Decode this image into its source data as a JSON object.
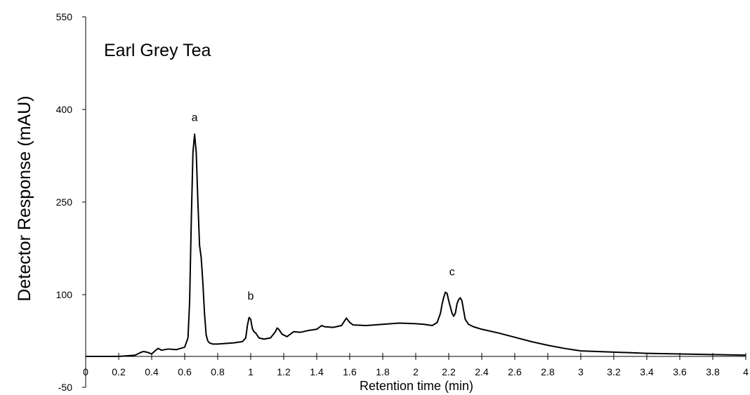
{
  "chart_data": {
    "type": "line",
    "title": "Earl Grey Tea",
    "xlabel": "Retention time (min)",
    "ylabel": "Detector Response (mAU)",
    "xlim": [
      0,
      4
    ],
    "ylim": [
      -50,
      550
    ],
    "x_ticks": [
      "0",
      "0.2",
      "0.4",
      "0.6",
      "0.8",
      "1",
      "1.2",
      "1.4",
      "1.6",
      "1.8",
      "2",
      "2.2",
      "2.4",
      "2.6",
      "2.8",
      "3",
      "3.2",
      "3.4",
      "3.6",
      "3.8",
      "4"
    ],
    "y_ticks": [
      "550",
      "400",
      "250",
      "100",
      "-50"
    ],
    "grid": false,
    "series_color": "#000000",
    "annotations": [
      {
        "text": "a",
        "x": 0.66,
        "y": 381
      },
      {
        "text": "b",
        "x": 1.0,
        "y": 92
      },
      {
        "text": "c",
        "x": 2.22,
        "y": 131
      }
    ],
    "series": [
      {
        "x": [
          0,
          0.1,
          0.2,
          0.3,
          0.33,
          0.35,
          0.37,
          0.4,
          0.42,
          0.44,
          0.46,
          0.5,
          0.55,
          0.6,
          0.62,
          0.63,
          0.64,
          0.65,
          0.66,
          0.67,
          0.68,
          0.69,
          0.7,
          0.71,
          0.72,
          0.73,
          0.74,
          0.75,
          0.77,
          0.8,
          0.85,
          0.9,
          0.95,
          0.97,
          0.98,
          0.99,
          1.0,
          1.01,
          1.02,
          1.03,
          1.05,
          1.08,
          1.12,
          1.15,
          1.16,
          1.17,
          1.19,
          1.22,
          1.25,
          1.26,
          1.3,
          1.35,
          1.4,
          1.43,
          1.45,
          1.5,
          1.55,
          1.57,
          1.58,
          1.6,
          1.62,
          1.7,
          1.8,
          1.9,
          2.0,
          2.05,
          2.1,
          2.13,
          2.15,
          2.16,
          2.17,
          2.18,
          2.19,
          2.2,
          2.22,
          2.23,
          2.24,
          2.25,
          2.26,
          2.27,
          2.28,
          2.29,
          2.3,
          2.32,
          2.35,
          2.4,
          2.5,
          2.6,
          2.7,
          2.8,
          2.9,
          3.0,
          3.2,
          3.4,
          3.6,
          3.8,
          4.0
        ],
        "y": [
          0,
          0,
          0,
          2,
          6,
          8,
          7,
          4,
          9,
          13,
          10,
          12,
          11,
          15,
          30,
          90,
          220,
          330,
          360,
          330,
          250,
          180,
          160,
          120,
          70,
          35,
          25,
          22,
          20,
          20,
          21,
          22,
          24,
          30,
          50,
          63,
          60,
          45,
          40,
          38,
          30,
          28,
          30,
          40,
          46,
          44,
          36,
          32,
          38,
          40,
          39,
          42,
          44,
          50,
          48,
          47,
          50,
          58,
          62,
          55,
          51,
          50,
          52,
          54,
          53,
          52,
          50,
          55,
          70,
          85,
          96,
          104,
          102,
          90,
          70,
          65,
          70,
          85,
          92,
          95,
          90,
          75,
          60,
          52,
          48,
          44,
          38,
          31,
          24,
          18,
          13,
          9,
          7,
          5,
          4,
          3,
          2
        ]
      }
    ]
  }
}
